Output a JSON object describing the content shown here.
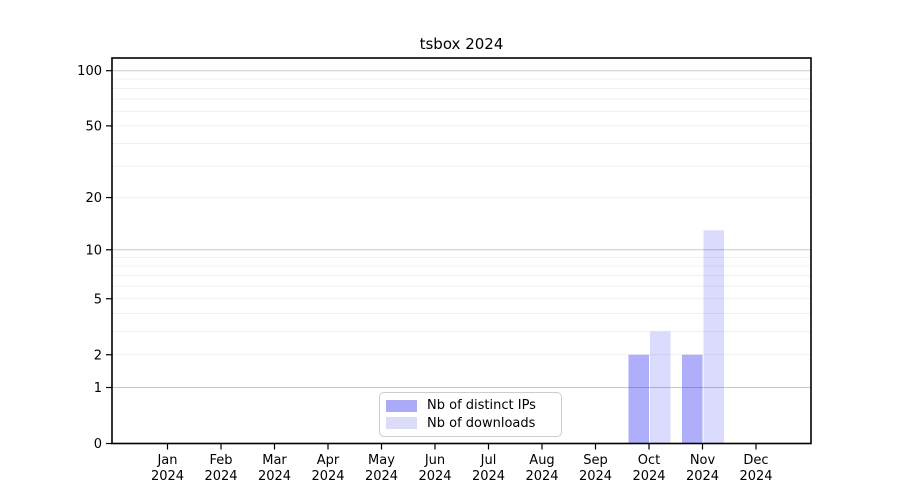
{
  "chart_data": {
    "type": "bar",
    "title": "tsbox 2024",
    "x": {
      "months": [
        "Jan",
        "Feb",
        "Mar",
        "Apr",
        "May",
        "Jun",
        "Jul",
        "Aug",
        "Sep",
        "Oct",
        "Nov",
        "Dec"
      ],
      "year": "2024",
      "categories": [
        "Jan 2024",
        "Feb 2024",
        "Mar 2024",
        "Apr 2024",
        "May 2024",
        "Jun 2024",
        "Jul 2024",
        "Aug 2024",
        "Sep 2024",
        "Oct 2024",
        "Nov 2024",
        "Dec 2024"
      ]
    },
    "y_axis": {
      "scale": "log1p",
      "ylim": [
        0,
        116
      ],
      "ticks": [
        {
          "value": 0,
          "label": "0"
        },
        {
          "value": 1,
          "label": "1"
        },
        {
          "value": 2,
          "label": "2"
        },
        {
          "value": 5,
          "label": "5"
        },
        {
          "value": 10,
          "label": "10"
        },
        {
          "value": 20,
          "label": "20"
        },
        {
          "value": 50,
          "label": "50"
        },
        {
          "value": 100,
          "label": "100"
        }
      ],
      "major_grid_values": [
        1,
        10,
        100
      ],
      "minor_grid_values": [
        2,
        3,
        4,
        5,
        6,
        7,
        8,
        9,
        20,
        30,
        40,
        50,
        60,
        70,
        80,
        90
      ]
    },
    "series": [
      {
        "name": "Nb of distinct IPs",
        "color": "#aaaaf8",
        "base_color": "#1e1ef0",
        "alpha": 0.36,
        "values": [
          0,
          0,
          0,
          0,
          0,
          0,
          0,
          0,
          0,
          2,
          2,
          0
        ]
      },
      {
        "name": "Nb of downloads",
        "color": "#dbdbfa",
        "base_color": "#1e1ef0",
        "alpha": 0.16,
        "values": [
          0,
          0,
          0,
          0,
          0,
          0,
          0,
          0,
          0,
          3,
          13,
          0
        ]
      }
    ],
    "grid": "horizontal",
    "legend_position": "lower center"
  },
  "colors": {
    "background": "#ffffff",
    "spine": "#000000",
    "tick_label": "#000000",
    "major_grid": "#c9c9c9",
    "minor_grid": "#f0f0f0",
    "legend_border": "#cccccc"
  }
}
